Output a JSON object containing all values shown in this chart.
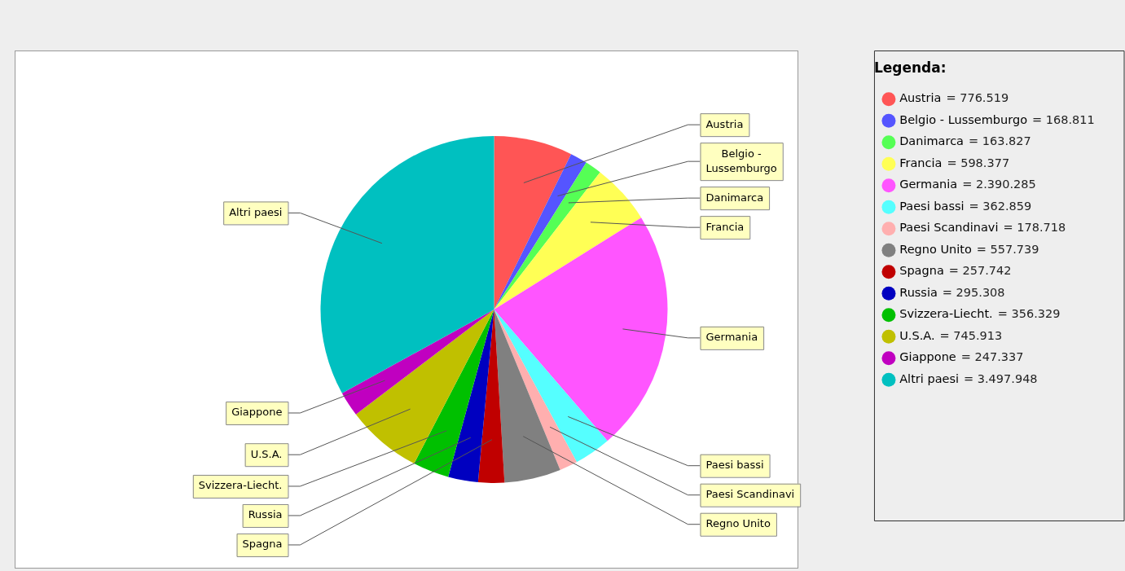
{
  "chart_data": {
    "type": "pie",
    "legend": "right",
    "legend_title": "Legenda:",
    "categories": [
      "Austria",
      "Belgio - Lussemburgo",
      "Danimarca",
      "Francia",
      "Germania",
      "Paesi bassi",
      "Paesi Scandinavi",
      "Regno Unito",
      "Spagna",
      "Russia",
      "Svizzera-Liecht.",
      "U.S.A.",
      "Giappone",
      "Altri paesi"
    ],
    "values": [
      776519,
      168811,
      163827,
      598377,
      2390285,
      362859,
      178718,
      557739,
      257742,
      295308,
      356329,
      745913,
      247337,
      3497948
    ],
    "value_labels": [
      "= 776.519",
      "= 168.811",
      "= 163.827",
      "= 598.377",
      "= 2.390.285",
      "= 362.859",
      "= 178.718",
      "= 557.739",
      "= 257.742",
      "= 295.308",
      "= 356.329",
      "= 745.913",
      "= 247.337",
      "= 3.497.948"
    ],
    "colors": [
      "#ff5555",
      "#5555ff",
      "#55ff55",
      "#ffff55",
      "#ff55ff",
      "#55ffff",
      "#ffafaf",
      "#808080",
      "#c00000",
      "#0000c0",
      "#00c000",
      "#c0c000",
      "#c000c0",
      "#00c0c0"
    ]
  }
}
